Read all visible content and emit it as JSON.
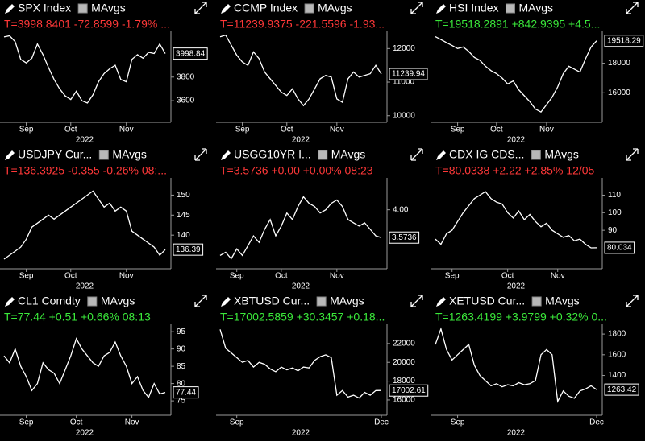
{
  "chart_data": [
    {
      "type": "line",
      "title": "SPX Index",
      "legend_label": "MAvgs",
      "status": "T=3998.8401 -72.8599 -1.79% ...",
      "status_color": "#ff3838",
      "color": "#ffffff",
      "categories": [
        null,
        null,
        null,
        null,
        "Sep",
        null,
        null,
        null,
        null,
        null,
        null,
        null,
        "Oct",
        null,
        null,
        null,
        null,
        null,
        null,
        null,
        null,
        null,
        "Nov",
        null,
        null,
        null,
        null,
        null,
        null,
        null
      ],
      "values": [
        4140,
        4150,
        4100,
        3950,
        3920,
        3960,
        4080,
        3990,
        3880,
        3780,
        3700,
        3640,
        3610,
        3680,
        3600,
        3580,
        3650,
        3760,
        3830,
        3870,
        3900,
        3780,
        3760,
        3950,
        3990,
        3960,
        4010,
        4000,
        4080,
        3998.84
      ],
      "ylim": [
        3430,
        4160
      ],
      "yticks": [
        3600,
        3800
      ],
      "x_label": "2022"
    },
    {
      "type": "line",
      "title": "CCMP Index",
      "legend_label": "MAvgs",
      "status": "T=11239.9375 -221.5596 -1.93...",
      "status_color": "#ff3838",
      "color": "#ffffff",
      "categories": [
        null,
        null,
        null,
        null,
        "Sep",
        null,
        null,
        null,
        null,
        null,
        null,
        null,
        "Oct",
        null,
        null,
        null,
        null,
        null,
        null,
        null,
        null,
        "Nov",
        null,
        null,
        null,
        null,
        null,
        null,
        null,
        null
      ],
      "values": [
        12350,
        12400,
        12100,
        11800,
        11600,
        11500,
        11900,
        11700,
        11300,
        11100,
        10900,
        10700,
        10600,
        10800,
        10500,
        10300,
        10500,
        10800,
        11100,
        11200,
        11150,
        10500,
        10400,
        11100,
        11300,
        11150,
        11200,
        11250,
        11500,
        11239.94
      ],
      "ylim": [
        9850,
        12415
      ],
      "yticks": [
        10000,
        11000,
        12000
      ],
      "x_label": "2022"
    },
    {
      "type": "line",
      "title": "HSI Index",
      "legend_label": "MAvgs",
      "status": "T=19518.2891 +842.9395 +4.5...",
      "status_color": "#3ae83a",
      "color": "#ffffff",
      "categories": [
        null,
        null,
        null,
        null,
        "Sep",
        null,
        null,
        null,
        null,
        null,
        null,
        "Oct",
        null,
        null,
        null,
        null,
        null,
        null,
        null,
        null,
        "Nov",
        null,
        null,
        null,
        null,
        null,
        null,
        null,
        null,
        null
      ],
      "values": [
        19800,
        19600,
        19400,
        19200,
        19000,
        19100,
        18800,
        18400,
        18200,
        17800,
        17500,
        17300,
        17000,
        16600,
        16800,
        16200,
        15800,
        15400,
        14900,
        14700,
        15200,
        15700,
        16400,
        17300,
        17800,
        17600,
        17400,
        18300,
        19100,
        19518.29
      ],
      "ylim": [
        14110,
        19940
      ],
      "yticks": [
        16000,
        18000
      ],
      "x_label": "2022"
    },
    {
      "type": "line",
      "title": "USDJPY Cur...",
      "legend_label": "MAvgs",
      "status": "T=136.3925 -0.355 -0.26% 08:...",
      "status_color": "#ff3838",
      "color": "#ffffff",
      "categories": [
        null,
        null,
        null,
        null,
        "Sep",
        null,
        null,
        null,
        null,
        null,
        null,
        null,
        "Oct",
        null,
        null,
        null,
        null,
        null,
        null,
        null,
        null,
        null,
        "Nov",
        null,
        null,
        null,
        null,
        null,
        null,
        null
      ],
      "values": [
        134,
        135,
        136,
        137,
        139,
        142,
        143,
        144,
        145,
        144,
        145,
        146,
        147,
        148,
        149,
        150,
        151,
        149,
        147,
        148,
        146,
        147,
        146,
        141,
        140,
        139,
        138,
        137,
        135,
        136.39
      ],
      "ylim": [
        132,
        153.5
      ],
      "yticks": [
        140,
        145,
        150
      ],
      "x_label": "2022"
    },
    {
      "type": "line",
      "title": "USGG10YR I...",
      "legend_label": "MAvgs",
      "status": "T=3.5736 +0.00 +0.00% 08:23",
      "status_color": "#ff3838",
      "color": "#ffffff",
      "categories": [
        null,
        null,
        null,
        "Sep",
        null,
        null,
        null,
        null,
        null,
        null,
        null,
        "Oct",
        null,
        null,
        null,
        null,
        null,
        null,
        null,
        null,
        null,
        "Nov",
        null,
        null,
        null,
        null,
        null,
        null,
        null,
        null
      ],
      "values": [
        3.3,
        3.35,
        3.25,
        3.4,
        3.3,
        3.45,
        3.6,
        3.5,
        3.7,
        3.85,
        3.6,
        3.75,
        3.95,
        3.85,
        4.05,
        4.2,
        4.1,
        4.05,
        3.95,
        4.0,
        4.1,
        4.15,
        4.05,
        3.85,
        3.8,
        3.75,
        3.8,
        3.7,
        3.6,
        3.5736
      ],
      "ylim": [
        3.12,
        4.44
      ],
      "yticks": [
        {
          "value": 4,
          "label": "4.00"
        }
      ],
      "x_label": "2022"
    },
    {
      "type": "line",
      "title": "CDX IG CDS...",
      "legend_label": "MAvgs",
      "status": "T=80.0338 +2.22 +2.85% 12/05",
      "status_color": "#ff3838",
      "color": "#ffffff",
      "categories": [
        null,
        null,
        null,
        "Sep",
        null,
        null,
        null,
        null,
        null,
        null,
        null,
        null,
        null,
        "Oct",
        null,
        null,
        null,
        null,
        null,
        null,
        null,
        null,
        "Nov",
        null,
        null,
        null,
        null,
        null,
        null,
        null
      ],
      "values": [
        85,
        82,
        88,
        90,
        95,
        100,
        104,
        108,
        110,
        112,
        108,
        106,
        105,
        100,
        97,
        101,
        96,
        99,
        95,
        92,
        94,
        90,
        88,
        86,
        87,
        84,
        85,
        82,
        80,
        80.034
      ],
      "ylim": [
        69,
        118
      ],
      "yticks": [
        90,
        100,
        110
      ],
      "x_label": "2022"
    },
    {
      "type": "line",
      "title": "CL1 Comdty",
      "legend_label": "MAvgs",
      "status": "T=77.44 +0.51 +0.66% 08:13",
      "status_color": "#3ae83a",
      "color": "#ffffff",
      "categories": [
        null,
        null,
        null,
        null,
        "Sep",
        null,
        null,
        null,
        null,
        null,
        null,
        null,
        null,
        "Oct",
        null,
        null,
        null,
        null,
        null,
        null,
        null,
        null,
        null,
        "Nov",
        null,
        null,
        null,
        null,
        null,
        null
      ],
      "values": [
        88,
        86,
        90,
        85,
        82,
        78,
        80,
        86,
        84,
        83,
        80,
        84,
        88,
        93,
        90,
        88,
        86,
        85,
        88,
        89,
        92,
        88,
        85,
        80,
        82,
        78,
        76,
        80,
        77,
        77.44
      ],
      "ylim": [
        71.3,
        96.2
      ],
      "yticks": [
        75,
        80,
        85,
        90,
        95
      ],
      "x_label": "2022"
    },
    {
      "type": "line",
      "title": "XBTUSD Cur...",
      "legend_label": "MAvgs",
      "status": "T=17002.5859 +30.3457 +0.18...",
      "status_color": "#3ae83a",
      "color": "#ffffff",
      "categories": [
        null,
        null,
        null,
        "Sep",
        null,
        null,
        null,
        null,
        null,
        null,
        null,
        null,
        null,
        null,
        null,
        null,
        null,
        null,
        null,
        null,
        null,
        null,
        null,
        null,
        null,
        null,
        null,
        null,
        null,
        "Dec"
      ],
      "values": [
        23500,
        21500,
        21000,
        20500,
        20000,
        20200,
        19500,
        20000,
        19800,
        19300,
        19000,
        19500,
        19200,
        19400,
        19100,
        19500,
        19400,
        20200,
        20600,
        20800,
        20500,
        16500,
        17000,
        16300,
        16500,
        16200,
        16800,
        16500,
        17000,
        17002.61
      ],
      "ylim": [
        14540,
        23700
      ],
      "yticks": [
        16000,
        18000,
        20000,
        22000
      ],
      "x_label": "2022"
    },
    {
      "type": "line",
      "title": "XETUSD Cur...",
      "legend_label": "MAvgs",
      "status": "T=1263.4199 +3.9799 +0.32% 0...",
      "status_color": "#3ae83a",
      "color": "#ffffff",
      "categories": [
        null,
        null,
        null,
        null,
        "Sep",
        null,
        null,
        null,
        null,
        null,
        null,
        null,
        null,
        null,
        null,
        null,
        null,
        null,
        null,
        null,
        null,
        null,
        null,
        null,
        null,
        null,
        null,
        null,
        null,
        "Dec"
      ],
      "values": [
        1700,
        1850,
        1650,
        1550,
        1600,
        1650,
        1700,
        1500,
        1400,
        1350,
        1300,
        1320,
        1290,
        1310,
        1300,
        1330,
        1310,
        1320,
        1350,
        1600,
        1650,
        1600,
        1150,
        1250,
        1200,
        1180,
        1250,
        1270,
        1300,
        1263.42
      ],
      "ylim": [
        1031,
        1863
      ],
      "yticks": [
        1400,
        1600,
        1800
      ],
      "x_label": "2022"
    }
  ]
}
